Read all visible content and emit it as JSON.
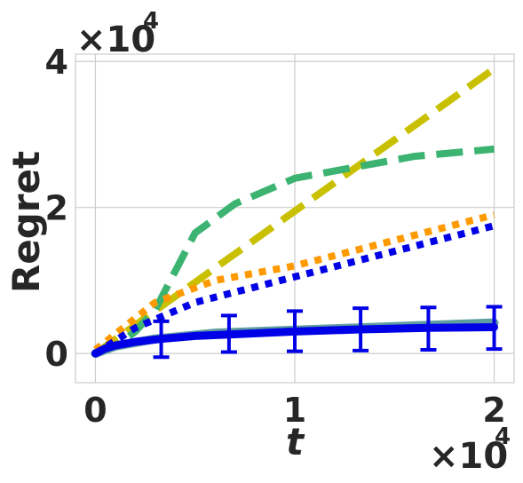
{
  "chart_data": {
    "type": "line",
    "xlabel": "t",
    "ylabel": "Regret",
    "x_multiplier": "×10",
    "x_multiplier_exp": "4",
    "y_multiplier": "×10",
    "y_multiplier_exp": "4",
    "xlim": [
      -0.1,
      2.1
    ],
    "ylim": [
      -0.4,
      4.1
    ],
    "xticks": [
      0,
      1,
      2
    ],
    "yticks": [
      0,
      2,
      4
    ],
    "grid": true,
    "series": [
      {
        "color": "#c8c000",
        "style": "dashed",
        "x": [
          0,
          2
        ],
        "y": [
          0,
          3.9
        ]
      },
      {
        "color": "#3cb371",
        "style": "dashed",
        "x": [
          0,
          0.1,
          0.2,
          0.3,
          0.5,
          0.7,
          1.0,
          1.3,
          1.6,
          2.0
        ],
        "y": [
          0,
          0.1,
          0.3,
          0.6,
          1.65,
          2.05,
          2.4,
          2.55,
          2.7,
          2.8
        ]
      },
      {
        "color": "#ff9900",
        "style": "dotted",
        "x": [
          0,
          0.3,
          0.6,
          1.0,
          1.5,
          2.0
        ],
        "y": [
          0.05,
          0.7,
          1.0,
          1.2,
          1.55,
          1.9
        ]
      },
      {
        "color": "#0000e6",
        "style": "dotted",
        "x": [
          0,
          0.2,
          0.5,
          1.0,
          1.5,
          2.0
        ],
        "y": [
          0,
          0.35,
          0.7,
          1.05,
          1.4,
          1.75
        ]
      },
      {
        "color": "#5f9ea0",
        "style": "solid",
        "x": [
          0,
          0.1,
          0.3,
          0.6,
          1.0,
          1.5,
          2.0
        ],
        "y": [
          0,
          0.1,
          0.2,
          0.28,
          0.32,
          0.37,
          0.42
        ]
      },
      {
        "color": "#0000e6",
        "style": "solid",
        "x": [
          0,
          0.05,
          0.1,
          0.2,
          0.33,
          0.5,
          0.67,
          1.0,
          1.33,
          1.67,
          2.0
        ],
        "y": [
          0,
          0.07,
          0.11,
          0.16,
          0.2,
          0.24,
          0.26,
          0.3,
          0.33,
          0.35,
          0.36
        ],
        "errorbars": [
          {
            "x": 0.33,
            "low": -0.05,
            "high": 0.44
          },
          {
            "x": 0.67,
            "low": 0.02,
            "high": 0.52
          },
          {
            "x": 1.0,
            "low": 0.03,
            "high": 0.58
          },
          {
            "x": 1.33,
            "low": 0.04,
            "high": 0.62
          },
          {
            "x": 1.67,
            "low": 0.05,
            "high": 0.63
          },
          {
            "x": 2.0,
            "low": 0.06,
            "high": 0.64
          }
        ]
      }
    ]
  }
}
